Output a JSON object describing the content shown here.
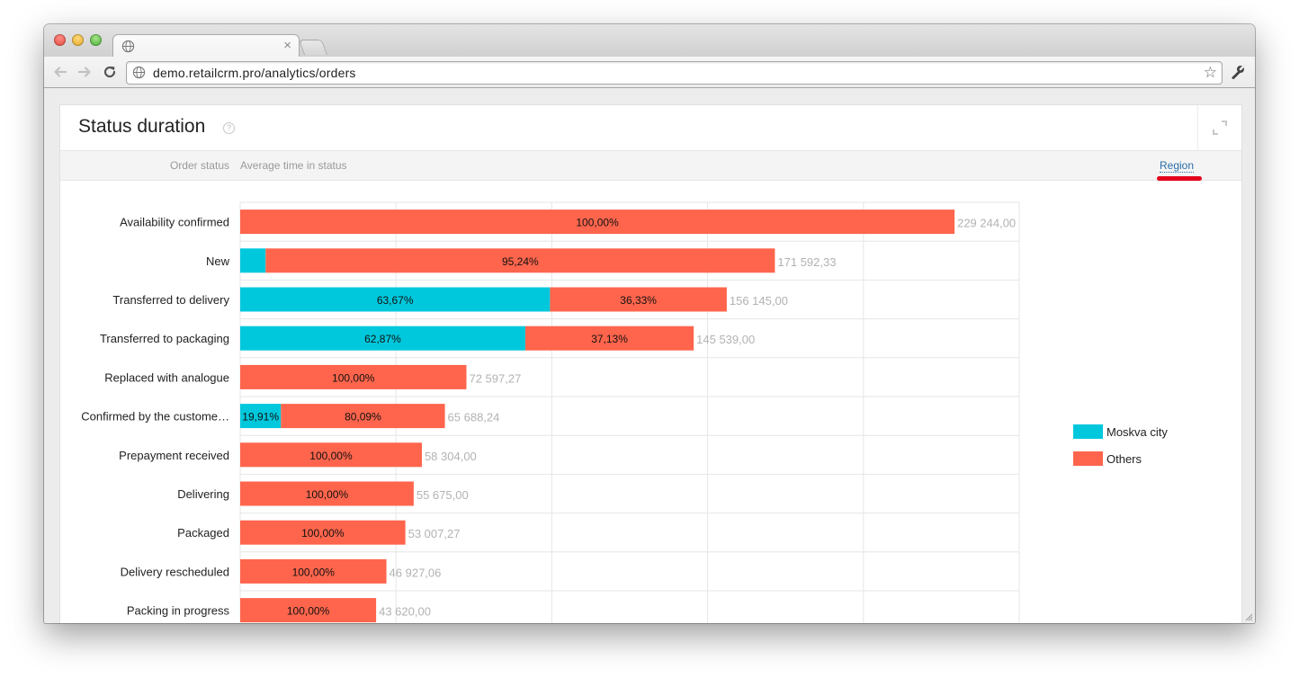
{
  "browser": {
    "url": "demo.retailcrm.pro/analytics/orders",
    "tab_close_glyph": "×",
    "star_glyph": "☆",
    "icons": [
      "back-icon",
      "forward-icon",
      "reload-icon",
      "globe-icon",
      "star-icon",
      "wrench-icon",
      "close-icon"
    ]
  },
  "card": {
    "title": "Status duration",
    "help_glyph": "?",
    "filter": {
      "label": "Order status",
      "value": "Average time in status",
      "group_link": "Region"
    }
  },
  "colors": {
    "moskva": "#00c8dc",
    "others": "#ff654c",
    "grid": "#e6e6e6",
    "total_label": "#b2b2b2",
    "highlight": "#e3001b"
  },
  "chart_data": {
    "type": "bar",
    "orientation": "horizontal",
    "stacked": true,
    "xlim": [
      0,
      250000
    ],
    "grid": true,
    "legend_position": "right",
    "categories": [
      "Availability confirmed",
      "New",
      "Transferred to delivery",
      "Transferred to packaging",
      "Replaced with analogue",
      "Confirmed by the custome…",
      "Prepayment received",
      "Delivering",
      "Packaged",
      "Delivery rescheduled",
      "Packing in progress"
    ],
    "totals": [
      229244.0,
      171592.33,
      156145.0,
      145539.0,
      72597.27,
      65688.24,
      58304.0,
      55675.0,
      53007.27,
      46927.06,
      43620.0
    ],
    "total_labels": [
      "229 244,00",
      "171 592,33",
      "156 145,00",
      "145 539,00",
      "72 597,27",
      "65 688,24",
      "58 304,00",
      "55 675,00",
      "53 007,27",
      "46 927,06",
      "43 620,00"
    ],
    "series": [
      {
        "name": "Moskva city",
        "share": [
          0,
          4.76,
          63.67,
          62.87,
          0,
          19.91,
          0,
          0,
          0,
          0,
          0
        ],
        "labels": [
          "",
          "",
          "63,67%",
          "62,87%",
          "",
          "19,91%",
          "",
          "",
          "",
          "",
          ""
        ]
      },
      {
        "name": "Others",
        "share": [
          100,
          95.24,
          36.33,
          37.13,
          100,
          80.09,
          100,
          100,
          100,
          100,
          100
        ],
        "labels": [
          "100,00%",
          "95,24%",
          "36,33%",
          "37,13%",
          "100,00%",
          "80,09%",
          "100,00%",
          "100,00%",
          "100,00%",
          "100,00%",
          "100,00%"
        ]
      }
    ]
  }
}
